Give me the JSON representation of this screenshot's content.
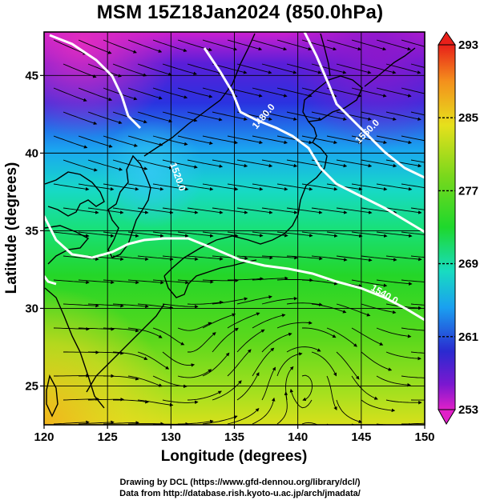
{
  "title": "MSM 15Z18Jan2024 (850.0hPa)",
  "map": {
    "lon_range": [
      120,
      150
    ],
    "lat_range": [
      22.5,
      47.8
    ],
    "x_ticks": [
      "120",
      "125",
      "130",
      "135",
      "140",
      "145",
      "150"
    ],
    "y_ticks": [
      "25",
      "30",
      "35",
      "40",
      "45"
    ],
    "xlabel": "Longitude (degrees)",
    "ylabel": "Latitude  (degrees)",
    "colorbar_ticks": [
      "293",
      "285",
      "277",
      "269",
      "261",
      "253"
    ],
    "colorbar_range": [
      253,
      293
    ],
    "contour_labels": [
      "1480.0",
      "1520.0",
      "1540.0",
      "1560.0"
    ],
    "colors": {
      "coast": "#000000",
      "contour": "#ffffff",
      "streamline": "#000000"
    }
  },
  "credits": {
    "line1": "Drawing by DCL (https://www.gfd-dennou.org/library/dcl/)",
    "line2": "Data from http://database.rish.kyoto-u.ac.jp/arch/jmadata/"
  }
}
